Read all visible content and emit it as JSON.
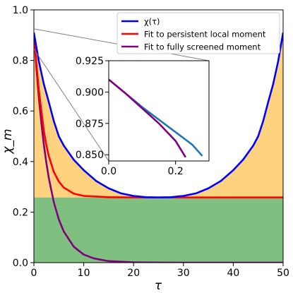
{
  "chart_data": [
    {
      "type": "line",
      "title": "",
      "xlabel": "τ",
      "ylabel": "χ_m",
      "xlim": [
        0,
        50
      ],
      "ylim": [
        0.0,
        1.0
      ],
      "x_ticks": [
        0,
        10,
        20,
        30,
        40,
        50
      ],
      "y_ticks": [
        0.0,
        0.2,
        0.4,
        0.6,
        0.8,
        1.0
      ],
      "grid": false,
      "legend_position": "upper-right",
      "shaded_regions": [
        {
          "color": "#ffd27f",
          "between": "χ(τ) and 0.258"
        },
        {
          "color": "#7fbf7f",
          "between": "0 and 0.258"
        }
      ],
      "series": [
        {
          "name": "χ(τ)",
          "color": "#0000ff",
          "x": [
            0,
            1,
            2,
            3,
            4,
            5,
            6,
            8,
            10,
            12.5,
            15,
            17.5,
            20,
            22.5,
            25,
            27.5,
            30,
            32.5,
            35,
            37.5,
            40,
            42,
            44,
            45,
            46,
            47,
            48,
            49,
            50
          ],
          "y": [
            0.91,
            0.796,
            0.706,
            0.635,
            0.56,
            0.5,
            0.463,
            0.407,
            0.366,
            0.323,
            0.294,
            0.274,
            0.264,
            0.259,
            0.258,
            0.259,
            0.264,
            0.274,
            0.294,
            0.323,
            0.366,
            0.408,
            0.463,
            0.5,
            0.56,
            0.635,
            0.706,
            0.796,
            0.91
          ]
        },
        {
          "name": "Fit to persistent local moment",
          "color": "#ff0000",
          "x": [
            0,
            0.5,
            1,
            1.5,
            2,
            2.5,
            3,
            4,
            5,
            6,
            8,
            10,
            15,
            20,
            30,
            40,
            50
          ],
          "y": [
            0.91,
            0.786,
            0.681,
            0.601,
            0.521,
            0.465,
            0.421,
            0.359,
            0.321,
            0.297,
            0.273,
            0.264,
            0.259,
            0.258,
            0.258,
            0.258,
            0.258
          ]
        },
        {
          "name": "Fit to fully screened moment",
          "color": "#800080",
          "x": [
            0,
            0.5,
            1,
            1.5,
            2,
            2.5,
            3,
            4,
            5,
            6,
            8,
            10,
            12,
            15,
            20,
            25,
            30,
            40,
            50
          ],
          "y": [
            0.91,
            0.77,
            0.652,
            0.552,
            0.467,
            0.395,
            0.334,
            0.239,
            0.171,
            0.123,
            0.063,
            0.032,
            0.017,
            0.006,
            0.0011,
            0.0002,
            0.0,
            0.0,
            0.0
          ]
        }
      ]
    },
    {
      "type": "line",
      "title": "",
      "xlabel": "",
      "ylabel": "",
      "xlim": [
        0,
        0.3
      ],
      "ylim": [
        0.845,
        0.925
      ],
      "x_ticks": [
        0.0,
        0.2
      ],
      "y_ticks": [
        0.85,
        0.875,
        0.9,
        0.925
      ],
      "series": [
        {
          "color": "#1f77b4",
          "x": [
            0,
            0.05,
            0.1,
            0.15,
            0.2,
            0.25,
            0.28
          ],
          "y": [
            0.91,
            0.899,
            0.888,
            0.878,
            0.868,
            0.858,
            0.849
          ]
        },
        {
          "color": "#800080",
          "x": [
            0,
            0.05,
            0.1,
            0.15,
            0.2,
            0.23
          ],
          "y": [
            0.91,
            0.899,
            0.887,
            0.875,
            0.861,
            0.848
          ]
        }
      ]
    }
  ]
}
